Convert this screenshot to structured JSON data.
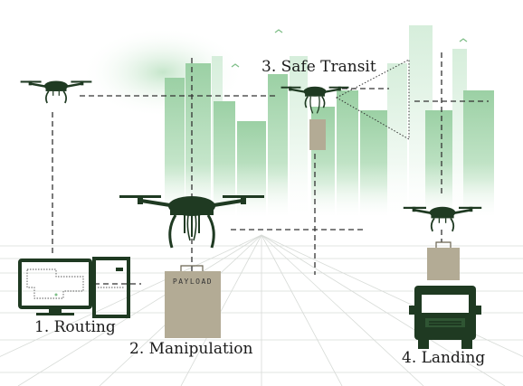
{
  "labels": {
    "routing": "1. Routing",
    "manipulation": "2. Manipulation",
    "safe_transit": "3. Safe Transit",
    "landing": "4. Landing"
  },
  "payload_text": "PAYLOAD",
  "colors": {
    "drone": "#1f3a22",
    "building": "#9fd1a8",
    "building_light": "#cfe9d3",
    "payload": "#b3ab95",
    "dashes": "#333333",
    "grid": "#d7dbd7"
  },
  "icons": [
    "drone-icon",
    "computer-monitor-icon",
    "pc-tower-icon",
    "payload-box-icon",
    "delivery-truck-icon",
    "bird-icon",
    "building-icon"
  ]
}
